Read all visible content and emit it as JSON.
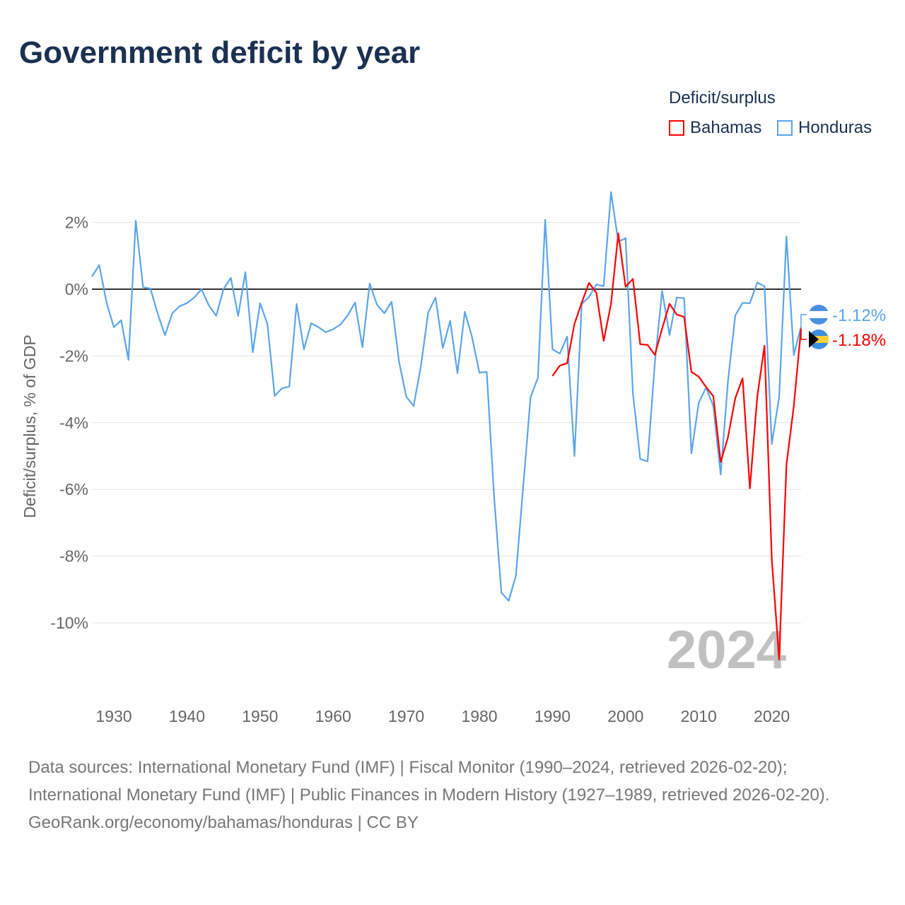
{
  "title": "Government deficit by year",
  "legend": {
    "title": "Deficit/surplus",
    "items": [
      {
        "name": "Bahamas",
        "color": "#ff0000"
      },
      {
        "name": "Honduras",
        "color": "#5aa5ea"
      }
    ]
  },
  "footer": {
    "sources": "Data sources: International Monetary Fund (IMF) | Fiscal Monitor (1990–2024, retrieved 2026-02-20); International Monetary Fund (IMF) | Public Finances in Modern History (1927–1989, retrieved 2026-02-20).",
    "credit": "GeoRank.org/economy/bahamas/honduras | CC BY"
  },
  "chart_data": {
    "type": "line",
    "title": "Government deficit by year",
    "ylabel": "Deficit/surplus, % of GDP",
    "xlabel": "",
    "xlim": [
      1927,
      2024
    ],
    "ylim": [
      -11.3,
      3
    ],
    "xticks": [
      1930,
      1940,
      1950,
      1960,
      1970,
      1980,
      1990,
      2000,
      2010,
      2020
    ],
    "yticks": [
      {
        "v": 2,
        "label": "2%"
      },
      {
        "v": 0,
        "label": "0%"
      },
      {
        "v": -2,
        "label": "-2%"
      },
      {
        "v": -4,
        "label": "-4%"
      },
      {
        "v": -6,
        "label": "-6%"
      },
      {
        "v": -8,
        "label": "-8%"
      },
      {
        "v": -10,
        "label": "-10%"
      }
    ],
    "year_watermark": "2024",
    "series": [
      {
        "name": "Honduras",
        "color": "#5aa5ea",
        "end_label": "-1.12%",
        "start_year": 1927,
        "values": [
          0.38,
          0.72,
          -0.4,
          -1.14,
          -0.93,
          -2.12,
          2.05,
          0.06,
          0.02,
          -0.74,
          -1.38,
          -0.72,
          -0.51,
          -0.42,
          -0.25,
          0,
          -0.49,
          -0.8,
          0,
          0.34,
          -0.8,
          0.51,
          -1.89,
          -0.42,
          -1.04,
          -3.2,
          -2.97,
          -2.92,
          -0.44,
          -1.8,
          -1.02,
          -1.14,
          -1.29,
          -1.2,
          -1.06,
          -0.78,
          -0.4,
          -1.74,
          0.17,
          -0.47,
          -0.72,
          -0.38,
          -2.16,
          -3.22,
          -3.5,
          -2.31,
          -0.7,
          -0.25,
          -1.76,
          -0.95,
          -2.52,
          -0.68,
          -1.44,
          -2.5,
          -2.48,
          -6.17,
          -9.09,
          -9.34,
          -8.58,
          -5.89,
          -3.24,
          -2.65,
          2.08,
          -1.8,
          -1.93,
          -1.42,
          -5.0,
          -0.44,
          -0.23,
          0.14,
          0.09,
          2.91,
          1.42,
          1.53,
          -3.13,
          -5.09,
          -5.16,
          -2.2,
          -0.05,
          -1.37,
          -0.25,
          -0.27,
          -4.92,
          -3.41,
          -2.95,
          -3.5,
          -5.55,
          -2.76,
          -0.79,
          -0.41,
          -0.42,
          0.2,
          0.09,
          -4.64,
          -3.23,
          1.58,
          -1.97,
          -1.12
        ]
      },
      {
        "name": "Bahamas",
        "color": "#ff0000",
        "end_label": "-1.18%",
        "start_year": 1990,
        "values": [
          -2.6,
          -2.29,
          -2.22,
          -1.04,
          -0.4,
          0.19,
          -0.11,
          -1.55,
          -0.44,
          1.67,
          0.07,
          0.31,
          -1.65,
          -1.67,
          -1.97,
          -1.18,
          -0.44,
          -0.76,
          -0.83,
          -2.48,
          -2.62,
          -2.93,
          -3.21,
          -5.18,
          -4.44,
          -3.27,
          -2.67,
          -5.97,
          -3.23,
          -1.69,
          -8.1,
          -11.1,
          -5.27,
          -3.51,
          -1.18
        ]
      }
    ]
  }
}
